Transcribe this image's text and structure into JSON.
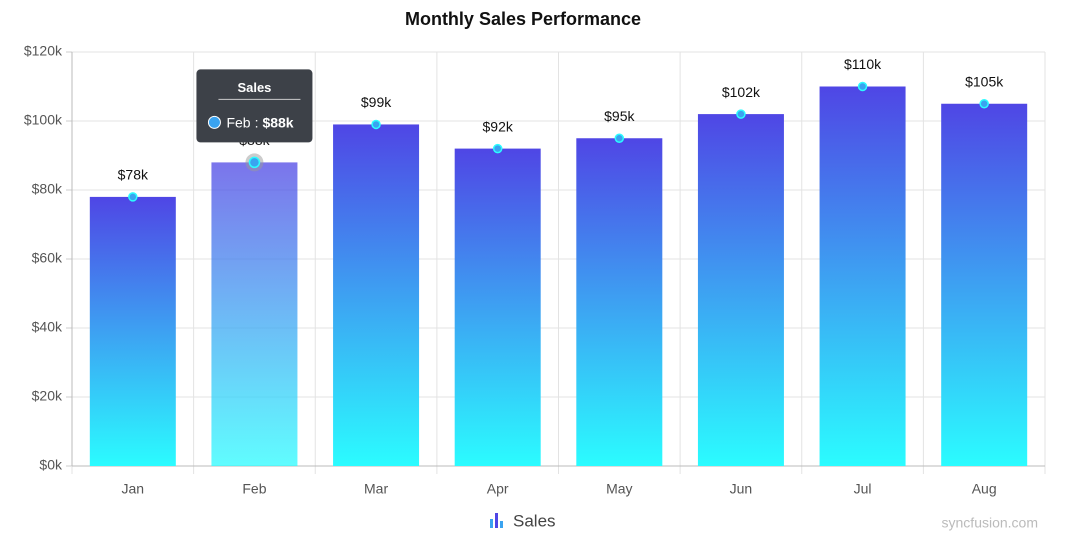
{
  "chart_data": {
    "type": "bar",
    "title": "Monthly Sales Performance",
    "categories": [
      "Jan",
      "Feb",
      "Mar",
      "Apr",
      "May",
      "Jun",
      "Jul",
      "Aug"
    ],
    "series": [
      {
        "name": "Sales",
        "color": "#4f46e5",
        "gradient_end": "#2bfcff",
        "values": [
          78000,
          88000,
          99000,
          92000,
          95000,
          102000,
          110000,
          105000
        ],
        "value_labels": [
          "$78k",
          "$88k",
          "$99k",
          "$92k",
          "$95k",
          "$102k",
          "$110k",
          "$105k"
        ]
      }
    ],
    "ylim": [
      0,
      120000
    ],
    "yticks": [
      {
        "value": 0,
        "label": "$0k"
      },
      {
        "value": 20000,
        "label": "$20k"
      },
      {
        "value": 40000,
        "label": "$40k"
      },
      {
        "value": 60000,
        "label": "$60k"
      },
      {
        "value": 80000,
        "label": "$80k"
      },
      {
        "value": 100000,
        "label": "$100k"
      },
      {
        "value": 120000,
        "label": "$120k"
      }
    ],
    "grid": true,
    "legend": "bottom",
    "tooltip": {
      "title": "Sales",
      "category": "Feb",
      "separator": ":",
      "value": "$88k"
    },
    "credit": "syncfusion.com"
  }
}
